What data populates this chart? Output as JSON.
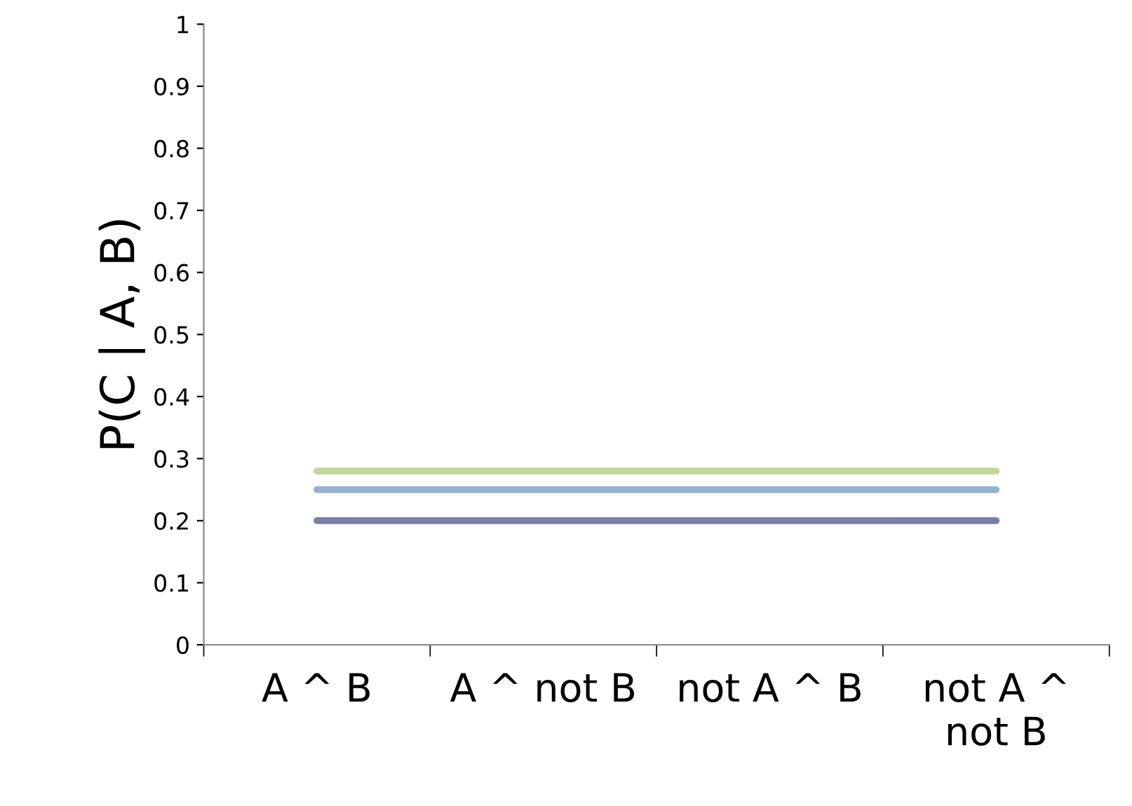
{
  "chart_data": {
    "type": "line",
    "ylabel": "P(C | A, B)",
    "categories": [
      "A ^ B",
      "A ^ not B",
      "not A ^ B",
      "not A ^ not B"
    ],
    "series": [
      {
        "color": "#c3d69b",
        "values": [
          0.28,
          0.28,
          0.28,
          0.28
        ]
      },
      {
        "color": "#93b3d0",
        "values": [
          0.25,
          0.25,
          0.25,
          0.25
        ]
      },
      {
        "color": "#7a7fa8",
        "values": [
          0.2,
          0.2,
          0.2,
          0.2
        ]
      }
    ],
    "ylim": [
      0,
      1
    ],
    "yticks": [
      0,
      0.1,
      0.2,
      0.3,
      0.4,
      0.5,
      0.6,
      0.7,
      0.8,
      0.9,
      1
    ],
    "grid": false,
    "legend": false,
    "marker": "none",
    "line_style": "solid"
  }
}
